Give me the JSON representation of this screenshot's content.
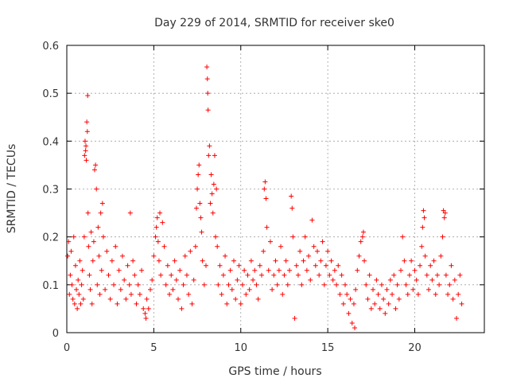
{
  "chart_data": {
    "type": "scatter",
    "title": "Day 229 of 2014, SRMTID for receiver ske0",
    "xlabel": "GPS time / hours",
    "ylabel": "SRMTID / TECUs",
    "xlim": [
      0,
      24
    ],
    "ylim": [
      0,
      0.6
    ],
    "xticks": [
      0,
      5,
      10,
      15,
      20
    ],
    "yticks": [
      0,
      0.1,
      0.2,
      0.3,
      0.4,
      0.5,
      0.6
    ],
    "xtick_labels": [
      "0",
      "5",
      "10",
      "15",
      "20"
    ],
    "ytick_labels": [
      "0",
      "0.1",
      "0.2",
      "0.3",
      "0.4",
      "0.5",
      "0.6"
    ],
    "grid": true,
    "marker": "+",
    "color": "#ff0000",
    "series": [
      {
        "name": "SRMTID",
        "points": [
          [
            0.05,
            0.16
          ],
          [
            0.1,
            0.19
          ],
          [
            0.15,
            0.08
          ],
          [
            0.2,
            0.12
          ],
          [
            0.25,
            0.17
          ],
          [
            0.3,
            0.1
          ],
          [
            0.35,
            0.07
          ],
          [
            0.4,
            0.2
          ],
          [
            0.45,
            0.06
          ],
          [
            0.5,
            0.14
          ],
          [
            0.55,
            0.09
          ],
          [
            0.6,
            0.05
          ],
          [
            0.65,
            0.11
          ],
          [
            0.7,
            0.08
          ],
          [
            0.75,
            0.15
          ],
          [
            0.8,
            0.06
          ],
          [
            0.85,
            0.1
          ],
          [
            0.9,
            0.13
          ],
          [
            0.95,
            0.07
          ],
          [
            1.0,
            0.2
          ],
          [
            1.02,
            0.37
          ],
          [
            1.05,
            0.4
          ],
          [
            1.08,
            0.38
          ],
          [
            1.1,
            0.39
          ],
          [
            1.12,
            0.36
          ],
          [
            1.15,
            0.44
          ],
          [
            1.18,
            0.42
          ],
          [
            1.2,
            0.495
          ],
          [
            1.22,
            0.25
          ],
          [
            1.25,
            0.18
          ],
          [
            1.3,
            0.12
          ],
          [
            1.35,
            0.09
          ],
          [
            1.4,
            0.21
          ],
          [
            1.45,
            0.06
          ],
          [
            1.5,
            0.15
          ],
          [
            1.55,
            0.19
          ],
          [
            1.6,
            0.34
          ],
          [
            1.65,
            0.35
          ],
          [
            1.7,
            0.3
          ],
          [
            1.75,
            0.1
          ],
          [
            1.8,
            0.22
          ],
          [
            1.85,
            0.16
          ],
          [
            1.9,
            0.08
          ],
          [
            1.95,
            0.25
          ],
          [
            2.0,
            0.13
          ],
          [
            2.05,
            0.27
          ],
          [
            2.1,
            0.2
          ],
          [
            2.2,
            0.09
          ],
          [
            2.3,
            0.17
          ],
          [
            2.4,
            0.12
          ],
          [
            2.5,
            0.07
          ],
          [
            2.6,
            0.15
          ],
          [
            2.7,
            0.1
          ],
          [
            2.8,
            0.18
          ],
          [
            2.9,
            0.06
          ],
          [
            3.0,
            0.13
          ],
          [
            3.1,
            0.09
          ],
          [
            3.2,
            0.16
          ],
          [
            3.3,
            0.11
          ],
          [
            3.4,
            0.07
          ],
          [
            3.5,
            0.14
          ],
          [
            3.6,
            0.1
          ],
          [
            3.65,
            0.25
          ],
          [
            3.7,
            0.08
          ],
          [
            3.8,
            0.15
          ],
          [
            3.9,
            0.12
          ],
          [
            4.0,
            0.06
          ],
          [
            4.1,
            0.1
          ],
          [
            4.2,
            0.08
          ],
          [
            4.3,
            0.13
          ],
          [
            4.4,
            0.05
          ],
          [
            4.5,
            0.04
          ],
          [
            4.55,
            0.03
          ],
          [
            4.6,
            0.07
          ],
          [
            4.7,
            0.05
          ],
          [
            4.8,
            0.09
          ],
          [
            4.9,
            0.11
          ],
          [
            5.0,
            0.16
          ],
          [
            5.1,
            0.2
          ],
          [
            5.15,
            0.22
          ],
          [
            5.2,
            0.24
          ],
          [
            5.25,
            0.19
          ],
          [
            5.3,
            0.15
          ],
          [
            5.35,
            0.25
          ],
          [
            5.4,
            0.12
          ],
          [
            5.5,
            0.23
          ],
          [
            5.6,
            0.18
          ],
          [
            5.7,
            0.1
          ],
          [
            5.8,
            0.14
          ],
          [
            5.9,
            0.08
          ],
          [
            6.0,
            0.12
          ],
          [
            6.1,
            0.09
          ],
          [
            6.2,
            0.15
          ],
          [
            6.3,
            0.11
          ],
          [
            6.4,
            0.07
          ],
          [
            6.5,
            0.13
          ],
          [
            6.6,
            0.05
          ],
          [
            6.7,
            0.1
          ],
          [
            6.8,
            0.16
          ],
          [
            6.9,
            0.12
          ],
          [
            7.0,
            0.08
          ],
          [
            7.1,
            0.17
          ],
          [
            7.2,
            0.06
          ],
          [
            7.3,
            0.11
          ],
          [
            7.4,
            0.18
          ],
          [
            7.45,
            0.26
          ],
          [
            7.5,
            0.3
          ],
          [
            7.55,
            0.33
          ],
          [
            7.6,
            0.35
          ],
          [
            7.65,
            0.27
          ],
          [
            7.7,
            0.24
          ],
          [
            7.75,
            0.21
          ],
          [
            7.8,
            0.15
          ],
          [
            7.9,
            0.1
          ],
          [
            8.0,
            0.14
          ],
          [
            8.05,
            0.555
          ],
          [
            8.08,
            0.53
          ],
          [
            8.1,
            0.5
          ],
          [
            8.12,
            0.465
          ],
          [
            8.15,
            0.37
          ],
          [
            8.2,
            0.39
          ],
          [
            8.25,
            0.27
          ],
          [
            8.3,
            0.33
          ],
          [
            8.35,
            0.29
          ],
          [
            8.4,
            0.25
          ],
          [
            8.45,
            0.31
          ],
          [
            8.5,
            0.37
          ],
          [
            8.55,
            0.2
          ],
          [
            8.6,
            0.3
          ],
          [
            8.65,
            0.18
          ],
          [
            8.7,
            0.1
          ],
          [
            8.8,
            0.14
          ],
          [
            8.9,
            0.08
          ],
          [
            9.0,
            0.12
          ],
          [
            9.1,
            0.16
          ],
          [
            9.2,
            0.06
          ],
          [
            9.3,
            0.1
          ],
          [
            9.4,
            0.13
          ],
          [
            9.5,
            0.09
          ],
          [
            9.6,
            0.15
          ],
          [
            9.7,
            0.07
          ],
          [
            9.8,
            0.11
          ],
          [
            9.9,
            0.14
          ],
          [
            10.0,
            0.06
          ],
          [
            10.1,
            0.1
          ],
          [
            10.2,
            0.13
          ],
          [
            10.3,
            0.08
          ],
          [
            10.4,
            0.12
          ],
          [
            10.5,
            0.09
          ],
          [
            10.6,
            0.15
          ],
          [
            10.7,
            0.11
          ],
          [
            10.8,
            0.13
          ],
          [
            10.9,
            0.1
          ],
          [
            11.0,
            0.07
          ],
          [
            11.1,
            0.14
          ],
          [
            11.2,
            0.12
          ],
          [
            11.3,
            0.17
          ],
          [
            11.35,
            0.3
          ],
          [
            11.4,
            0.315
          ],
          [
            11.45,
            0.28
          ],
          [
            11.5,
            0.22
          ],
          [
            11.6,
            0.13
          ],
          [
            11.7,
            0.19
          ],
          [
            11.8,
            0.09
          ],
          [
            11.9,
            0.12
          ],
          [
            12.0,
            0.15
          ],
          [
            12.1,
            0.1
          ],
          [
            12.2,
            0.13
          ],
          [
            12.3,
            0.18
          ],
          [
            12.4,
            0.08
          ],
          [
            12.5,
            0.12
          ],
          [
            12.6,
            0.15
          ],
          [
            12.7,
            0.1
          ],
          [
            12.8,
            0.13
          ],
          [
            12.9,
            0.285
          ],
          [
            12.95,
            0.26
          ],
          [
            13.0,
            0.2
          ],
          [
            13.1,
            0.03
          ],
          [
            13.2,
            0.14
          ],
          [
            13.3,
            0.12
          ],
          [
            13.4,
            0.17
          ],
          [
            13.5,
            0.1
          ],
          [
            13.6,
            0.15
          ],
          [
            13.7,
            0.2
          ],
          [
            13.8,
            0.13
          ],
          [
            13.9,
            0.16
          ],
          [
            14.0,
            0.11
          ],
          [
            14.1,
            0.235
          ],
          [
            14.2,
            0.18
          ],
          [
            14.3,
            0.14
          ],
          [
            14.4,
            0.17
          ],
          [
            14.5,
            0.12
          ],
          [
            14.6,
            0.15
          ],
          [
            14.7,
            0.19
          ],
          [
            14.8,
            0.1
          ],
          [
            14.9,
            0.14
          ],
          [
            15.0,
            0.17
          ],
          [
            15.1,
            0.12
          ],
          [
            15.2,
            0.15
          ],
          [
            15.3,
            0.11
          ],
          [
            15.4,
            0.13
          ],
          [
            15.5,
            0.1
          ],
          [
            15.6,
            0.14
          ],
          [
            15.7,
            0.08
          ],
          [
            15.8,
            0.12
          ],
          [
            15.9,
            0.06
          ],
          [
            16.0,
            0.1
          ],
          [
            16.1,
            0.08
          ],
          [
            16.2,
            0.04
          ],
          [
            16.3,
            0.07
          ],
          [
            16.4,
            0.02
          ],
          [
            16.5,
            0.06
          ],
          [
            16.55,
            0.01
          ],
          [
            16.6,
            0.09
          ],
          [
            16.7,
            0.13
          ],
          [
            16.8,
            0.16
          ],
          [
            16.9,
            0.19
          ],
          [
            17.0,
            0.2
          ],
          [
            17.05,
            0.21
          ],
          [
            17.1,
            0.15
          ],
          [
            17.2,
            0.1
          ],
          [
            17.3,
            0.07
          ],
          [
            17.4,
            0.12
          ],
          [
            17.5,
            0.05
          ],
          [
            17.6,
            0.09
          ],
          [
            17.7,
            0.06
          ],
          [
            17.8,
            0.11
          ],
          [
            17.9,
            0.08
          ],
          [
            18.0,
            0.05
          ],
          [
            18.1,
            0.1
          ],
          [
            18.2,
            0.07
          ],
          [
            18.3,
            0.04
          ],
          [
            18.4,
            0.09
          ],
          [
            18.5,
            0.06
          ],
          [
            18.6,
            0.11
          ],
          [
            18.7,
            0.08
          ],
          [
            18.8,
            0.12
          ],
          [
            18.9,
            0.05
          ],
          [
            19.0,
            0.1
          ],
          [
            19.1,
            0.07
          ],
          [
            19.2,
            0.13
          ],
          [
            19.3,
            0.2
          ],
          [
            19.4,
            0.15
          ],
          [
            19.5,
            0.1
          ],
          [
            19.6,
            0.08
          ],
          [
            19.7,
            0.12
          ],
          [
            19.8,
            0.15
          ],
          [
            19.9,
            0.09
          ],
          [
            20.0,
            0.13
          ],
          [
            20.1,
            0.11
          ],
          [
            20.2,
            0.08
          ],
          [
            20.3,
            0.14
          ],
          [
            20.4,
            0.18
          ],
          [
            20.45,
            0.22
          ],
          [
            20.5,
            0.255
          ],
          [
            20.55,
            0.24
          ],
          [
            20.6,
            0.16
          ],
          [
            20.7,
            0.12
          ],
          [
            20.8,
            0.09
          ],
          [
            20.9,
            0.14
          ],
          [
            21.0,
            0.11
          ],
          [
            21.1,
            0.15
          ],
          [
            21.2,
            0.08
          ],
          [
            21.3,
            0.12
          ],
          [
            21.4,
            0.1
          ],
          [
            21.5,
            0.16
          ],
          [
            21.6,
            0.2
          ],
          [
            21.65,
            0.255
          ],
          [
            21.7,
            0.24
          ],
          [
            21.75,
            0.25
          ],
          [
            21.8,
            0.12
          ],
          [
            21.9,
            0.08
          ],
          [
            22.0,
            0.1
          ],
          [
            22.1,
            0.14
          ],
          [
            22.2,
            0.07
          ],
          [
            22.3,
            0.11
          ],
          [
            22.4,
            0.03
          ],
          [
            22.5,
            0.08
          ],
          [
            22.6,
            0.12
          ],
          [
            22.7,
            0.06
          ]
        ]
      }
    ]
  }
}
